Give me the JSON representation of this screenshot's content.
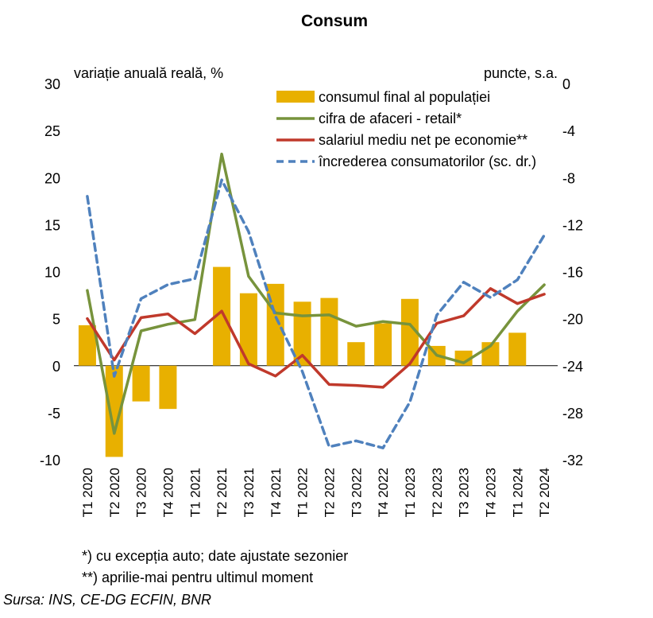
{
  "chart_data": {
    "type": "bar",
    "title": "Consum",
    "left_axis_label": "variație anuală reală, %",
    "right_axis_label": "puncte, s.a.",
    "categories": [
      "T1 2020",
      "T2 2020",
      "T3 2020",
      "T4 2020",
      "T1 2021",
      "T2 2021",
      "T3 2021",
      "T4 2021",
      "T1 2022",
      "T2 2022",
      "T3 2022",
      "T4 2022",
      "T1 2023",
      "T2 2023",
      "T3 2023",
      "T4 2023",
      "T1 2024",
      "T2 2024"
    ],
    "ylim_left": [
      -10,
      30
    ],
    "yticks_left": [
      -10,
      -5,
      0,
      5,
      10,
      15,
      20,
      25,
      30
    ],
    "ylim_right": [
      -32,
      0
    ],
    "yticks_right": [
      -32,
      -28,
      -24,
      -20,
      -16,
      -12,
      -8,
      -4,
      0
    ],
    "legend_position": "top-right",
    "series": [
      {
        "name": "consumul final al populației",
        "kind": "bar",
        "axis": "left",
        "color": "#E8B000",
        "values": [
          4.3,
          -9.7,
          -3.8,
          -4.6,
          null,
          10.5,
          7.7,
          8.7,
          6.8,
          7.2,
          2.5,
          4.5,
          7.1,
          2.1,
          1.6,
          2.5,
          3.5,
          null
        ]
      },
      {
        "name": "cifra de afaceri - retail*",
        "kind": "line",
        "axis": "left",
        "color": "#77933C",
        "values": [
          8.0,
          -7.2,
          3.7,
          4.4,
          4.9,
          22.5,
          9.5,
          5.6,
          5.3,
          5.4,
          4.2,
          4.7,
          4.4,
          1.1,
          0.3,
          2.1,
          5.8,
          8.6
        ]
      },
      {
        "name": "salariul mediu net pe economie**",
        "kind": "line",
        "axis": "left",
        "color": "#C0392B",
        "values": [
          5.0,
          0.6,
          5.1,
          5.5,
          3.4,
          5.8,
          0.2,
          -1.1,
          1.1,
          -2.0,
          -2.1,
          -2.3,
          0.2,
          4.5,
          5.3,
          8.2,
          6.6,
          7.6
        ]
      },
      {
        "name": "încrederea consumatorilor (sc. dr.)",
        "kind": "dashed-line",
        "axis": "right",
        "color": "#4F81BD",
        "values": [
          -9.6,
          -24.9,
          -18.3,
          -17.1,
          -16.6,
          -8.2,
          -12.6,
          -19.8,
          -24.5,
          -30.9,
          -30.4,
          -31.0,
          -27.1,
          -19.7,
          -16.9,
          -18.2,
          -16.7,
          -12.9
        ]
      }
    ],
    "footnotes": [
      "*) cu excepția auto; date ajustate sezonier",
      "**) aprilie-mai pentru ultimul moment"
    ],
    "source": "Sursa: INS, CE-DG ECFIN, BNR"
  }
}
